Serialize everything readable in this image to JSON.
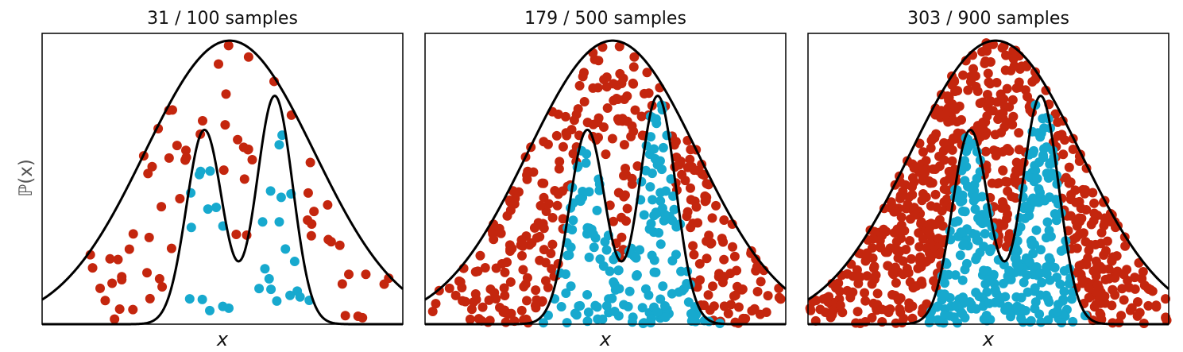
{
  "figure": {
    "ylabel": "ℙ(x)",
    "colors": {
      "accepted": "#17a9ce",
      "rejected": "#c4260e",
      "curve": "#000000"
    }
  },
  "chart_data": [
    {
      "type": "scatter",
      "title": "31 / 100 samples",
      "xlabel": "x",
      "accepted": 31,
      "total": 100,
      "seed": 11
    },
    {
      "type": "scatter",
      "title": "179 / 500 samples",
      "xlabel": "x",
      "accepted": 179,
      "total": 500,
      "seed": 23
    },
    {
      "type": "scatter",
      "title": "303 / 900 samples",
      "xlabel": "x",
      "accepted": 303,
      "total": 900,
      "seed": 37
    }
  ]
}
